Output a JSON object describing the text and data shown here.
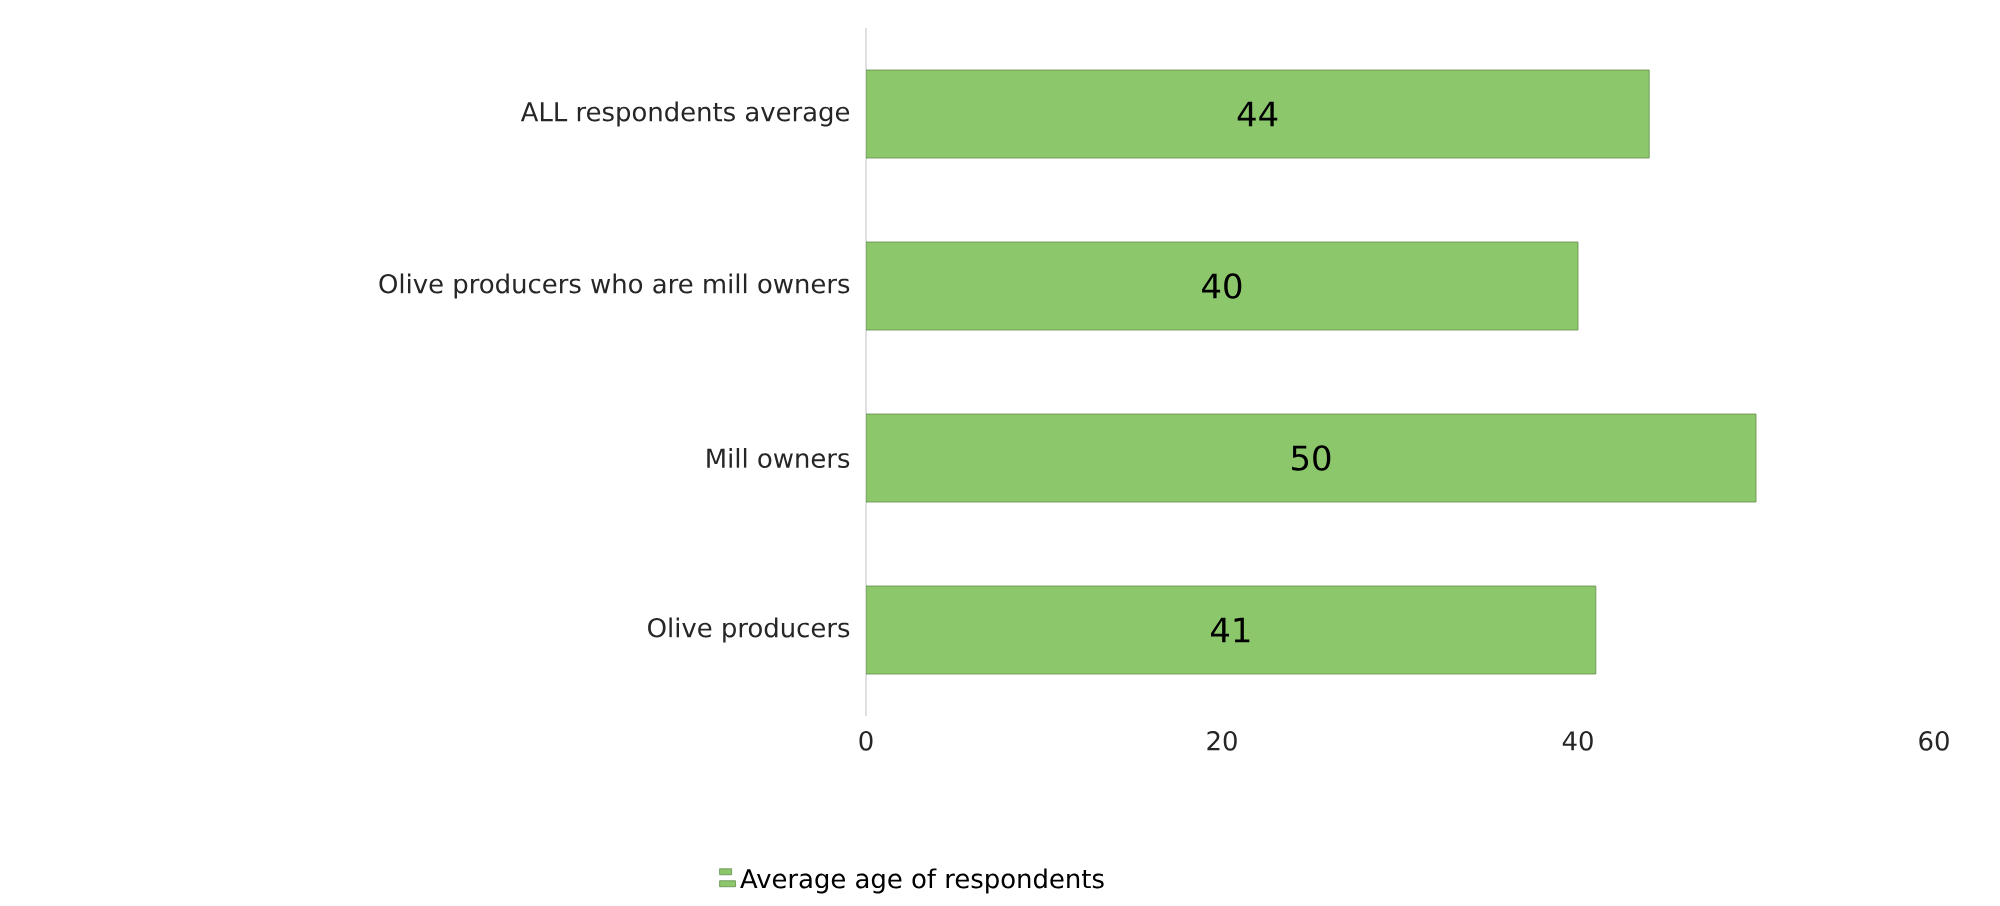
{
  "chart_data": {
    "type": "bar",
    "orientation": "horizontal",
    "categories": [
      "ALL respondents average",
      "Olive producers who are mill owners",
      "Mill owners",
      "Olive producers"
    ],
    "series": [
      {
        "name": "Average age of respondents",
        "color": "#8cc86b",
        "values": [
          44,
          40,
          50,
          41
        ]
      }
    ],
    "xlim": [
      0,
      60
    ],
    "xticks": [
      0,
      20,
      40,
      60
    ],
    "data_labels": true,
    "legend": "bottom"
  }
}
